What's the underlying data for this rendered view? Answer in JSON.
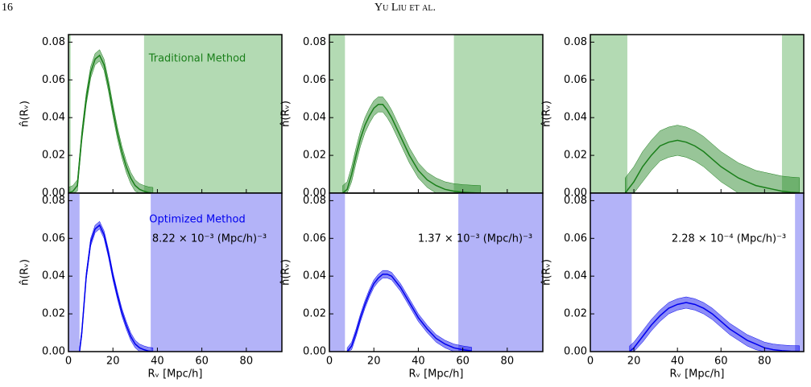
{
  "header": {
    "page": "16",
    "running_title": "Yu Liu et al."
  },
  "chart_data": [
    {
      "type": "line",
      "annotations": [
        "Traditional Method"
      ],
      "ylabel": "n̂(Rᵥ)",
      "xlim": [
        0,
        96
      ],
      "ylim": [
        0,
        0.084
      ],
      "xticks": [
        0,
        20,
        40,
        60,
        80
      ],
      "show_xtick_labels": false,
      "yticks": [
        {
          "value": 0,
          "label": "0.00"
        },
        0.02,
        0.04,
        0.06,
        0.08
      ],
      "shaded": [
        [
          0,
          1
        ],
        [
          34,
          96
        ]
      ],
      "shade_color": "#b3dab3",
      "series": [
        {
          "color": "#1a7f1a",
          "spread": 0.003,
          "x": [
            0,
            2,
            4,
            6,
            8,
            10,
            12,
            14,
            16,
            18,
            20,
            22,
            24,
            26,
            28,
            30,
            32,
            34,
            36,
            38
          ],
          "values": [
            0,
            0.001,
            0.004,
            0.03,
            0.05,
            0.064,
            0.071,
            0.073,
            0.068,
            0.057,
            0.044,
            0.032,
            0.022,
            0.014,
            0.008,
            0.004,
            0.002,
            0.001,
            0.0003,
            0
          ]
        }
      ]
    },
    {
      "type": "line",
      "ylabel": "n̂(Rᵥ)",
      "xlim": [
        0,
        96
      ],
      "ylim": [
        0,
        0.084
      ],
      "xticks": [
        0,
        20,
        40,
        60,
        80
      ],
      "show_xtick_labels": false,
      "yticks": [
        {
          "value": 0,
          "label": "0.00"
        },
        0.02,
        0.04,
        0.06,
        0.08
      ],
      "shaded": [
        [
          0,
          7
        ],
        [
          56,
          96
        ]
      ],
      "shade_color": "#b3dab3",
      "series": [
        {
          "color": "#1a7f1a",
          "spread": 0.004,
          "x": [
            6,
            8,
            10,
            12,
            14,
            16,
            18,
            20,
            22,
            24,
            26,
            28,
            30,
            32,
            34,
            36,
            38,
            40,
            44,
            48,
            52,
            56,
            60,
            64,
            68
          ],
          "values": [
            0,
            0.002,
            0.01,
            0.02,
            0.029,
            0.036,
            0.041,
            0.045,
            0.047,
            0.047,
            0.044,
            0.04,
            0.035,
            0.03,
            0.025,
            0.02,
            0.016,
            0.012,
            0.007,
            0.004,
            0.002,
            0.001,
            0.0005,
            0.0002,
            0
          ]
        }
      ]
    },
    {
      "type": "line",
      "ylabel": "n̂(Rᵥ)",
      "xlim": [
        0,
        98
      ],
      "ylim": [
        0,
        0.084
      ],
      "xticks": [
        0,
        20,
        40,
        60,
        80
      ],
      "show_xtick_labels": false,
      "yticks": [
        {
          "value": 0,
          "label": "0.00"
        },
        0.02,
        0.04,
        0.06,
        0.08
      ],
      "shaded": [
        [
          0,
          17
        ],
        [
          88,
          98
        ]
      ],
      "shade_color": "#b3dab3",
      "series": [
        {
          "color": "#1a7f1a",
          "spread": 0.008,
          "x": [
            16,
            20,
            24,
            28,
            32,
            36,
            40,
            44,
            48,
            52,
            56,
            60,
            64,
            68,
            72,
            76,
            80,
            84,
            88,
            92,
            96
          ],
          "values": [
            0,
            0.006,
            0.014,
            0.02,
            0.025,
            0.027,
            0.028,
            0.027,
            0.025,
            0.022,
            0.018,
            0.014,
            0.011,
            0.008,
            0.006,
            0.004,
            0.003,
            0.002,
            0.001,
            0.0005,
            0.0002
          ]
        }
      ]
    },
    {
      "type": "line",
      "annotations": [
        "Optimized Method",
        "8.22 × 10⁻³ (Mpc/h)⁻³"
      ],
      "ylabel": "n̂(Rᵥ)",
      "xlabel": "Rᵥ [Mpc/h]",
      "xlim": [
        0,
        96
      ],
      "ylim": [
        0,
        0.084
      ],
      "xticks": [
        0,
        20,
        40,
        60,
        80
      ],
      "show_xtick_labels": true,
      "yticks": [
        {
          "value": 0,
          "label": "0.00"
        },
        0.02,
        0.04,
        0.06,
        0.08
      ],
      "shaded": [
        [
          0,
          5
        ],
        [
          37,
          96
        ]
      ],
      "shade_color": "#b3b3f8",
      "series": [
        {
          "color": "#0000ee",
          "spread": 0.002,
          "x": [
            5,
            6,
            8,
            10,
            12,
            14,
            16,
            18,
            20,
            22,
            24,
            26,
            28,
            30,
            32,
            34,
            36,
            38
          ],
          "values": [
            0,
            0.01,
            0.04,
            0.058,
            0.065,
            0.067,
            0.062,
            0.052,
            0.04,
            0.03,
            0.021,
            0.014,
            0.008,
            0.004,
            0.002,
            0.001,
            0.0003,
            0
          ]
        }
      ]
    },
    {
      "type": "line",
      "annotations": [
        "1.37 × 10⁻³ (Mpc/h)⁻³"
      ],
      "ylabel": "n̂(Rᵥ)",
      "xlabel": "Rᵥ [Mpc/h]",
      "xlim": [
        0,
        96
      ],
      "ylim": [
        0,
        0.084
      ],
      "xticks": [
        0,
        20,
        40,
        60,
        80
      ],
      "show_xtick_labels": true,
      "yticks": [
        {
          "value": 0,
          "label": "0.00"
        },
        0.02,
        0.04,
        0.06,
        0.08
      ],
      "shaded": [
        [
          0,
          7
        ],
        [
          58,
          96
        ]
      ],
      "shade_color": "#b3b3f8",
      "series": [
        {
          "color": "#0000ee",
          "spread": 0.002,
          "x": [
            8,
            10,
            12,
            14,
            16,
            18,
            20,
            22,
            24,
            26,
            28,
            30,
            32,
            34,
            36,
            38,
            40,
            44,
            48,
            52,
            56,
            60,
            64
          ],
          "values": [
            0,
            0.003,
            0.01,
            0.018,
            0.025,
            0.031,
            0.036,
            0.039,
            0.041,
            0.041,
            0.04,
            0.037,
            0.034,
            0.03,
            0.026,
            0.022,
            0.018,
            0.012,
            0.007,
            0.004,
            0.002,
            0.001,
            0.0003
          ]
        }
      ]
    },
    {
      "type": "line",
      "annotations": [
        "2.28 × 10⁻⁴ (Mpc/h)⁻³"
      ],
      "ylabel": "n̂(Rᵥ)",
      "xlabel": "Rᵥ [Mpc/h]",
      "xlim": [
        0,
        98
      ],
      "ylim": [
        0,
        0.084
      ],
      "xticks": [
        0,
        20,
        40,
        60,
        80
      ],
      "show_xtick_labels": true,
      "yticks": [
        {
          "value": 0,
          "label": "0.00"
        },
        0.02,
        0.04,
        0.06,
        0.08
      ],
      "shaded": [
        [
          0,
          19
        ],
        [
          94,
          98
        ]
      ],
      "shade_color": "#b3b3f8",
      "series": [
        {
          "color": "#0000ee",
          "spread": 0.003,
          "x": [
            18,
            20,
            24,
            28,
            32,
            36,
            40,
            44,
            48,
            52,
            56,
            60,
            64,
            68,
            72,
            76,
            80,
            84,
            88,
            92,
            96
          ],
          "values": [
            0,
            0.002,
            0.008,
            0.014,
            0.019,
            0.023,
            0.025,
            0.026,
            0.025,
            0.023,
            0.02,
            0.016,
            0.012,
            0.009,
            0.006,
            0.004,
            0.002,
            0.001,
            0.0005,
            0.0002,
            0.0001
          ]
        }
      ]
    }
  ]
}
